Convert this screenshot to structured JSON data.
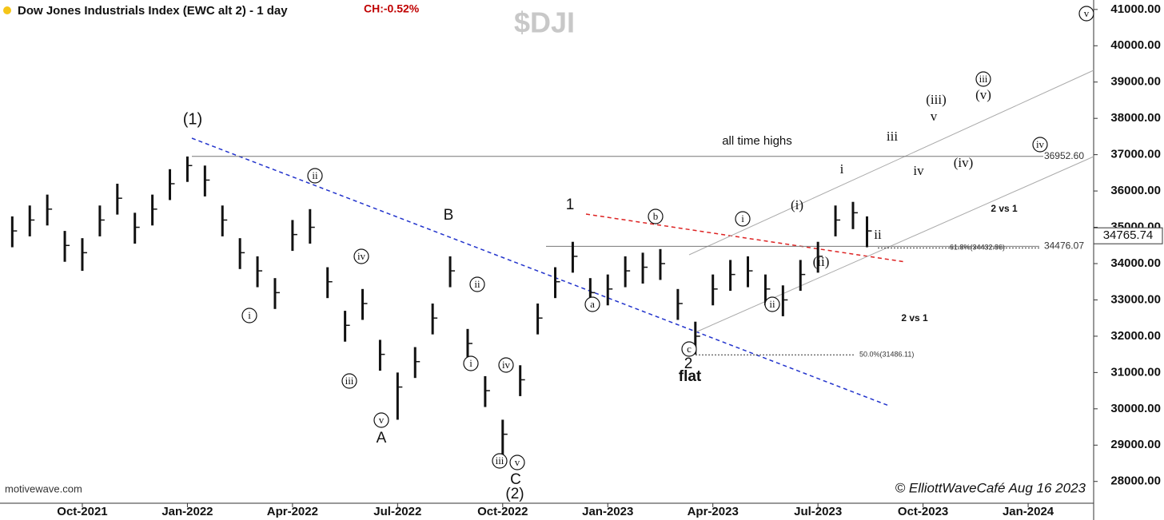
{
  "chart_data": {
    "type": "ohlc",
    "title": "Dow Jones Industrials Index (EWC alt 2) - 1 day",
    "change": "CH:-0.52%",
    "symbol": "$DJI",
    "source": "motivewave.com",
    "credit": "© ElliottWaveCafé Aug 16 2023",
    "color": "#111111",
    "xlim": [
      -2.35,
      28.87
    ],
    "xticks": [
      {
        "value": 0,
        "label": "Oct-2021"
      },
      {
        "value": 3,
        "label": "Jan-2022"
      },
      {
        "value": 6,
        "label": "Apr-2022"
      },
      {
        "value": 9,
        "label": "Jul-2022"
      },
      {
        "value": 12,
        "label": "Oct-2022"
      },
      {
        "value": 15,
        "label": "Jan-2023"
      },
      {
        "value": 18,
        "label": "Apr-2023"
      },
      {
        "value": 21,
        "label": "Jul-2023"
      },
      {
        "value": 24,
        "label": "Oct-2023"
      },
      {
        "value": 27,
        "label": "Jan-2024"
      }
    ],
    "ylim": [
      27400,
      41260
    ],
    "yticks": [
      {
        "value": 28000,
        "label": "28000.00"
      },
      {
        "value": 29000,
        "label": "29000.00"
      },
      {
        "value": 30000,
        "label": "30000.00"
      },
      {
        "value": 31000,
        "label": "31000.00"
      },
      {
        "value": 32000,
        "label": "32000.00"
      },
      {
        "value": 33000,
        "label": "33000.00"
      },
      {
        "value": 34000,
        "label": "34000.00"
      },
      {
        "value": 35000,
        "label": "35000.00"
      },
      {
        "value": 36000,
        "label": "36000.00"
      },
      {
        "value": 37000,
        "label": "37000.00"
      },
      {
        "value": 38000,
        "label": "38000.00"
      },
      {
        "value": 39000,
        "label": "39000.00"
      },
      {
        "value": 40000,
        "label": "40000.00"
      },
      {
        "value": 41000,
        "label": "41000.00"
      }
    ],
    "x": [
      -2.0,
      -1.5,
      -1.0,
      -0.5,
      0,
      0.5,
      1.0,
      1.5,
      2.0,
      2.5,
      3.0,
      3.5,
      4.0,
      4.5,
      5.0,
      5.5,
      6.0,
      6.5,
      7.0,
      7.5,
      8.0,
      8.5,
      9.0,
      9.5,
      10.0,
      10.5,
      11.0,
      11.5,
      12.0,
      12.5,
      13.0,
      13.5,
      14.0,
      14.5,
      15.0,
      15.5,
      16.0,
      16.5,
      17.0,
      17.5,
      18.0,
      18.5,
      19.0,
      19.5,
      20.0,
      20.5,
      21.0,
      21.5,
      22.0,
      22.4
    ],
    "high": [
      35300,
      35600,
      35900,
      34900,
      34700,
      35600,
      36200,
      35400,
      35900,
      36600,
      36950,
      36700,
      35600,
      34700,
      34200,
      33600,
      35200,
      35500,
      33900,
      32700,
      33300,
      31900,
      31000,
      31700,
      32900,
      34200,
      32200,
      30900,
      29700,
      31200,
      32900,
      33900,
      34600,
      33600,
      33700,
      34200,
      34300,
      34400,
      33300,
      32400,
      33700,
      34100,
      34200,
      33700,
      33400,
      34100,
      34600,
      35600,
      35700,
      35300
    ],
    "low": [
      34450,
      34750,
      35050,
      34050,
      33800,
      34750,
      35350,
      34550,
      35050,
      35750,
      36250,
      35850,
      34750,
      33850,
      33350,
      32750,
      34350,
      34550,
      33050,
      31850,
      32450,
      31050,
      29700,
      30850,
      32050,
      33350,
      31350,
      30050,
      28700,
      30350,
      32050,
      33050,
      33750,
      32750,
      32850,
      33350,
      33450,
      33550,
      32450,
      31500,
      32850,
      33250,
      33350,
      32850,
      32550,
      33250,
      33750,
      34750,
      34950,
      34450
    ],
    "close": [
      34900,
      35200,
      35500,
      34500,
      34300,
      35200,
      35800,
      35000,
      35500,
      36200,
      36700,
      36300,
      35200,
      34300,
      33800,
      33200,
      34800,
      35000,
      33500,
      32300,
      32900,
      31500,
      30600,
      31300,
      32500,
      33800,
      31800,
      30500,
      29300,
      30800,
      32500,
      33500,
      34200,
      33200,
      33300,
      33800,
      33900,
      34000,
      32900,
      32000,
      33300,
      33700,
      33800,
      33300,
      33000,
      33700,
      34200,
      35200,
      35400,
      34900
    ],
    "levels": [
      {
        "value": 36952.6,
        "label": "36952.60"
      },
      {
        "value": 34476.07,
        "label": "34476.07"
      }
    ],
    "fib_levels": [
      {
        "value": 34432.86,
        "label": "61.8%(34432.86)"
      },
      {
        "value": 31486.11,
        "label": "50.0%(31486.11)"
      }
    ],
    "last_price": {
      "value": 34765.74,
      "label": "34765.74"
    },
    "labels": [
      "(1)",
      "B",
      "1",
      "A",
      "C",
      "(2)",
      "2",
      "flat",
      "all time highs",
      "(iii)",
      "v",
      "iii",
      "iv",
      "(iv)",
      "i",
      "ii",
      "(i)",
      "(ii)",
      "(v)",
      "2 vs 1",
      "2 vs 1"
    ],
    "circled_labels": [
      "ii",
      "i",
      "iv",
      "iii",
      "v",
      "ii",
      "i",
      "iv",
      "iii",
      "v",
      "a",
      "b",
      "c",
      "i",
      "ii",
      "iii",
      "iv",
      "v"
    ]
  }
}
